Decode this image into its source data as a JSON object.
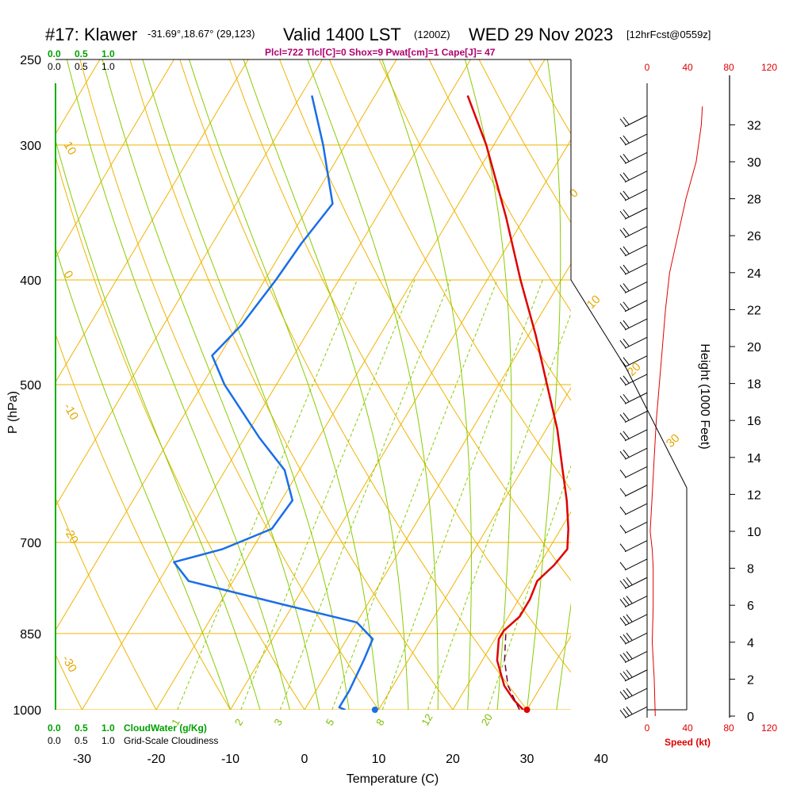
{
  "header": {
    "station": "#17: Klawer",
    "coords": "-31.69°,18.67° (29,123)",
    "valid": "Valid 1400 LST",
    "utc": "(1200Z)",
    "date": "WED 29 Nov 2023",
    "fcst": "[12hrFcst@0559z]",
    "params": "Plcl=722 Tlcl[C]=0 Shox=9 Pwat[cm]=1 Cape[J]= 47"
  },
  "colors": {
    "isotherm": "#f0b400",
    "adiabat": "#88cc00",
    "temperature": "#e00000",
    "dewpoint": "#1a6ee8",
    "parcel": "#700040",
    "mixing": "#88cc00",
    "cloud": "#00b000",
    "speed": "#e00000"
  },
  "chart_data": {
    "type": "line",
    "subtype": "skew-T log-P sounding",
    "xlabel": "Temperature (C)",
    "ylabel": "P (hPa)",
    "y2label": "Height (1000 Feet)",
    "pressure_ticks": [
      250,
      300,
      400,
      500,
      700,
      850,
      1000
    ],
    "temperature_ticks": [
      -30,
      -20,
      -10,
      0,
      10,
      20,
      30,
      40
    ],
    "height_ticks": [
      0,
      2,
      4,
      6,
      8,
      10,
      12,
      14,
      16,
      18,
      20,
      22,
      24,
      26,
      28,
      30,
      32
    ],
    "speed_ticks_top": [
      0,
      40,
      80,
      120
    ],
    "speed_ticks_bottom": [
      0,
      40,
      80,
      120
    ],
    "speed_label": "Speed (kt)",
    "cloud_top_ticks_green": [
      "0.0",
      "0.5",
      "1.0"
    ],
    "cloud_top_ticks_black": [
      "0.0",
      "0.5",
      "1.0"
    ],
    "cloud_bottom_ticks_green": [
      "0.0",
      "0.5",
      "1.0"
    ],
    "cloud_bottom_ticks_black": [
      "0.0",
      "0.5",
      "1.0"
    ],
    "cloudwater_label": "CloudWater (g/Kg)",
    "cloudiness_label": "Grid-Scale Cloudiness",
    "isotherm_labels": [
      "10",
      "0",
      "-10",
      "-20",
      "-30"
    ],
    "adiabat_labels": [
      "0",
      "10",
      "20",
      "30"
    ],
    "mixing_labels": [
      "1",
      "2",
      "3",
      "5",
      "8",
      "12",
      "20"
    ],
    "temperature_profile": [
      {
        "p": 1000,
        "t": 29.5
      },
      {
        "p": 980,
        "t": 27.5
      },
      {
        "p": 950,
        "t": 25.0
      },
      {
        "p": 900,
        "t": 22.0
      },
      {
        "p": 860,
        "t": 20.5
      },
      {
        "p": 845,
        "t": 20.5
      },
      {
        "p": 820,
        "t": 21.5
      },
      {
        "p": 790,
        "t": 21.5
      },
      {
        "p": 760,
        "t": 21.0
      },
      {
        "p": 735,
        "t": 22.0
      },
      {
        "p": 710,
        "t": 22.5
      },
      {
        "p": 680,
        "t": 21.0
      },
      {
        "p": 640,
        "t": 18.5
      },
      {
        "p": 600,
        "t": 15.5
      },
      {
        "p": 550,
        "t": 11.5
      },
      {
        "p": 500,
        "t": 6.5
      },
      {
        "p": 450,
        "t": 1.0
      },
      {
        "p": 400,
        "t": -5.5
      },
      {
        "p": 350,
        "t": -12.5
      },
      {
        "p": 300,
        "t": -21.0
      },
      {
        "p": 270,
        "t": -27.5
      }
    ],
    "dewpoint_profile": [
      {
        "p": 1000,
        "t": 5.5
      },
      {
        "p": 995,
        "t": 4.5
      },
      {
        "p": 960,
        "t": 4.5
      },
      {
        "p": 900,
        "t": 4.0
      },
      {
        "p": 860,
        "t": 3.5
      },
      {
        "p": 830,
        "t": 0.0
      },
      {
        "p": 800,
        "t": -11.0
      },
      {
        "p": 760,
        "t": -26.0
      },
      {
        "p": 730,
        "t": -29.5
      },
      {
        "p": 710,
        "t": -24.0
      },
      {
        "p": 680,
        "t": -19.0
      },
      {
        "p": 640,
        "t": -18.5
      },
      {
        "p": 600,
        "t": -22.0
      },
      {
        "p": 560,
        "t": -28.0
      },
      {
        "p": 500,
        "t": -37.0
      },
      {
        "p": 470,
        "t": -41.0
      },
      {
        "p": 440,
        "t": -39.5
      },
      {
        "p": 400,
        "t": -38.5
      },
      {
        "p": 370,
        "t": -38.0
      },
      {
        "p": 340,
        "t": -37.0
      },
      {
        "p": 300,
        "t": -43.0
      },
      {
        "p": 270,
        "t": -48.5
      }
    ],
    "parcel_profile": [
      {
        "p": 1000,
        "t": 29.0
      },
      {
        "p": 950,
        "t": 25.5
      },
      {
        "p": 900,
        "t": 23.0
      },
      {
        "p": 850,
        "t": 21.0
      }
    ],
    "surface_temperature": 30.0,
    "surface_dewpoint": 9.5,
    "wind_speed_profile": [
      {
        "h": 0,
        "kt": 8
      },
      {
        "h": 2,
        "kt": 7
      },
      {
        "h": 4,
        "kt": 5
      },
      {
        "h": 6,
        "kt": 6
      },
      {
        "h": 8,
        "kt": 6
      },
      {
        "h": 9,
        "kt": 5
      },
      {
        "h": 10,
        "kt": 3
      },
      {
        "h": 12,
        "kt": 5
      },
      {
        "h": 14,
        "kt": 7
      },
      {
        "h": 16,
        "kt": 9
      },
      {
        "h": 18,
        "kt": 12
      },
      {
        "h": 20,
        "kt": 15
      },
      {
        "h": 22,
        "kt": 18
      },
      {
        "h": 24,
        "kt": 22
      },
      {
        "h": 26,
        "kt": 30
      },
      {
        "h": 28,
        "kt": 38
      },
      {
        "h": 30,
        "kt": 48
      },
      {
        "h": 32,
        "kt": 53
      },
      {
        "h": 33,
        "kt": 54
      }
    ]
  }
}
